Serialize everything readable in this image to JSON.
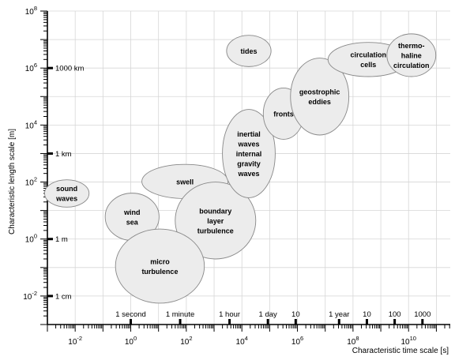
{
  "axes": {
    "x_title": "Characteristic time scale [s]",
    "y_title": "Characteristic length scale [m]",
    "x_ticks": [
      {
        "exp": -2,
        "base": "10",
        "sup": "-2"
      },
      {
        "exp": 0,
        "base": "10",
        "sup": "0"
      },
      {
        "exp": 2,
        "base": "10",
        "sup": "2"
      },
      {
        "exp": 4,
        "base": "10",
        "sup": "4"
      },
      {
        "exp": 6,
        "base": "10",
        "sup": "6"
      },
      {
        "exp": 8,
        "base": "10",
        "sup": "8"
      },
      {
        "exp": 10,
        "base": "10",
        "sup": "10"
      }
    ],
    "y_ticks": [
      {
        "exp": -2,
        "base": "10",
        "sup": "-2"
      },
      {
        "exp": 0,
        "base": "10",
        "sup": "0"
      },
      {
        "exp": 2,
        "base": "10",
        "sup": "2"
      },
      {
        "exp": 4,
        "base": "10",
        "sup": "4"
      },
      {
        "exp": 6,
        "base": "10",
        "sup": "6"
      },
      {
        "exp": 8,
        "base": "10",
        "sup": "8"
      }
    ],
    "x_range_log10": [
      -3,
      11.5
    ],
    "y_range_log10": [
      -3,
      8
    ],
    "grid": true
  },
  "time_markers": [
    {
      "label": "1 second",
      "log10_s": 0
    },
    {
      "label": "1 minute",
      "log10_s": 1.778
    },
    {
      "label": "1 hour",
      "log10_s": 3.556
    },
    {
      "label": "1 day",
      "log10_s": 4.937
    },
    {
      "label": "10",
      "log10_s": 5.937
    },
    {
      "label": "1 year",
      "log10_s": 7.499
    },
    {
      "label": "10",
      "log10_s": 8.499
    },
    {
      "label": "100",
      "log10_s": 9.499
    },
    {
      "label": "1000",
      "log10_s": 10.499
    }
  ],
  "length_markers": [
    {
      "label": "1 cm",
      "log10_m": -2
    },
    {
      "label": "1 m",
      "log10_m": 0
    },
    {
      "label": "1 km",
      "log10_m": 3
    },
    {
      "label": "1000 km",
      "log10_m": 6
    }
  ],
  "phenomena": [
    {
      "lines": [
        "sound",
        "waves"
      ],
      "log_t": -2.3,
      "log_l": 1.6,
      "log_t_half": 0.8,
      "log_l_half": 0.48
    },
    {
      "lines": [
        "wind",
        "sea"
      ],
      "log_t": 0.05,
      "log_l": 0.78,
      "log_t_half": 0.97,
      "log_l_half": 0.83
    },
    {
      "lines": [
        "swell"
      ],
      "log_t": 1.95,
      "log_l": 2.02,
      "log_t_half": 1.55,
      "log_l_half": 0.6
    },
    {
      "lines": [
        "boundary",
        "layer",
        "turbulence"
      ],
      "log_t": 3.05,
      "log_l": 0.65,
      "log_t_half": 1.45,
      "log_l_half": 1.35
    },
    {
      "lines": [
        "micro",
        "turbulence"
      ],
      "log_t": 1.05,
      "log_l": -0.95,
      "log_t_half": 1.6,
      "log_l_half": 1.3
    },
    {
      "lines": [
        "tides"
      ],
      "log_t": 4.25,
      "log_l": 6.6,
      "log_t_half": 0.8,
      "log_l_half": 0.55
    },
    {
      "lines": [
        "inertial",
        "waves",
        "internal",
        "gravity",
        "waves"
      ],
      "log_t": 4.25,
      "log_l": 3.0,
      "log_t_half": 0.95,
      "log_l_half": 1.55
    },
    {
      "lines": [
        "fronts"
      ],
      "log_t": 5.5,
      "log_l": 4.4,
      "log_t_half": 0.73,
      "log_l_half": 0.9
    },
    {
      "lines": [
        "geostrophic",
        "eddies"
      ],
      "log_t": 6.8,
      "log_l": 5.0,
      "log_t_half": 1.05,
      "log_l_half": 1.35
    },
    {
      "lines": [
        "circulation",
        "cells"
      ],
      "log_t": 8.55,
      "log_l": 6.3,
      "log_t_half": 1.45,
      "log_l_half": 0.6
    },
    {
      "lines": [
        "thermo-",
        "haline",
        "circulation"
      ],
      "log_t": 10.1,
      "log_l": 6.45,
      "log_t_half": 0.88,
      "log_l_half": 0.75
    }
  ],
  "colors": {
    "ellipse_fill": "#ececec",
    "ellipse_stroke": "#888888",
    "grid": "#d6d6d6",
    "axis": "#000000"
  }
}
